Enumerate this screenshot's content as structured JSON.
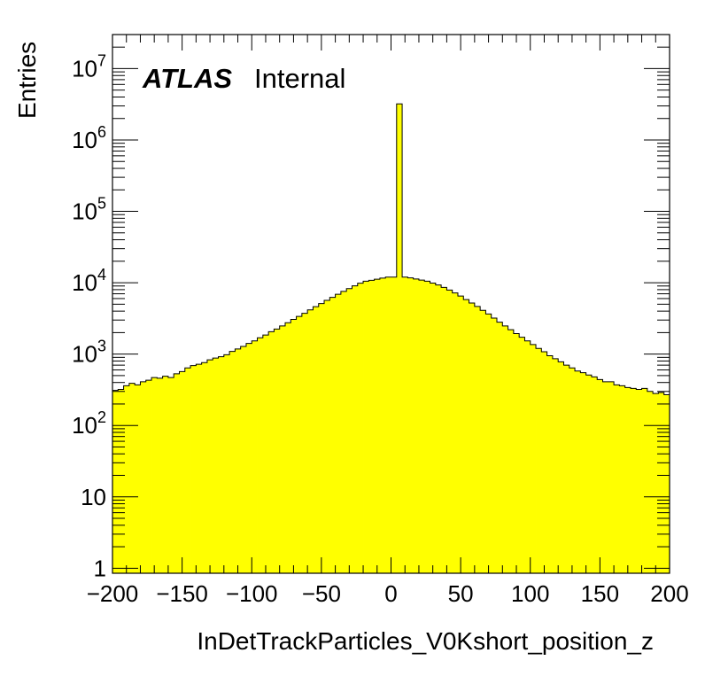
{
  "chart_data": {
    "type": "histogram",
    "title": "",
    "xlabel": "InDetTrackParticles_V0Kshort_position_z",
    "ylabel": "Entries",
    "xlim": [
      -200,
      200
    ],
    "ylim": [
      0.85,
      30000000
    ],
    "yscale": "log",
    "bin_width": 4,
    "bin_edges_start": -200,
    "fill_color": "#ffff00",
    "line_color": "#000000",
    "x_tick_labels": [
      "−200",
      "−150",
      "−100",
      "−50",
      "0",
      "50",
      "100",
      "150",
      "200"
    ],
    "y_tick_labels": [
      {
        "value": 1,
        "base": "1",
        "exp": ""
      },
      {
        "value": 10,
        "base": "10",
        "exp": ""
      },
      {
        "value": 100,
        "base": "10",
        "exp": "2"
      },
      {
        "value": 1000,
        "base": "10",
        "exp": "3"
      },
      {
        "value": 10000,
        "base": "10",
        "exp": "4"
      },
      {
        "value": 100000,
        "base": "10",
        "exp": "5"
      },
      {
        "value": 1000000,
        "base": "10",
        "exp": "6"
      },
      {
        "value": 10000000,
        "base": "10",
        "exp": "7"
      }
    ],
    "values": [
      310,
      320,
      360,
      390,
      370,
      410,
      430,
      470,
      460,
      490,
      470,
      530,
      570,
      640,
      690,
      720,
      760,
      830,
      880,
      920,
      980,
      1090,
      1180,
      1280,
      1410,
      1530,
      1690,
      1850,
      2060,
      2240,
      2480,
      2750,
      3060,
      3370,
      3730,
      4160,
      4620,
      5110,
      5660,
      6230,
      6900,
      7560,
      8270,
      9030,
      9850,
      10500,
      10800,
      11200,
      11600,
      12000,
      12000,
      3200000,
      12000,
      11700,
      11300,
      10900,
      10500,
      9900,
      9300,
      8600,
      7900,
      7200,
      6500,
      5800,
      5200,
      4650,
      4100,
      3650,
      3200,
      2800,
      2480,
      2200,
      1940,
      1720,
      1530,
      1360,
      1200,
      1080,
      950,
      860,
      780,
      700,
      640,
      580,
      550,
      510,
      480,
      440,
      410,
      410,
      370,
      360,
      340,
      330,
      320,
      330,
      300,
      280,
      290,
      270
    ]
  },
  "annotation": {
    "atlas": "ATLAS",
    "label": "Internal"
  }
}
